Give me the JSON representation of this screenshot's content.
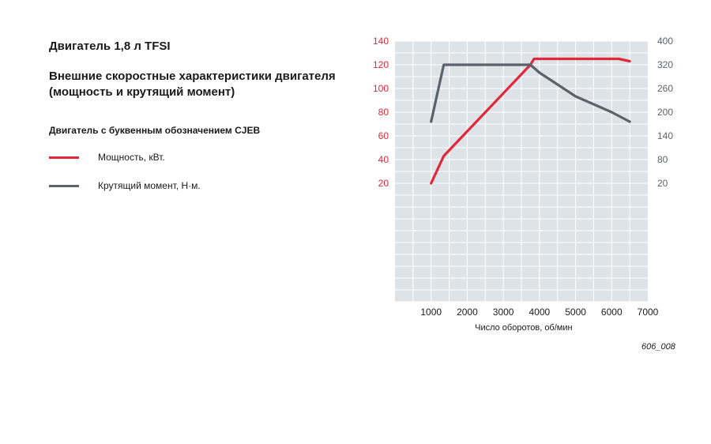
{
  "heading": "Двигатель 1,8 л TFSI",
  "subheading": "Внешние скоростные характеристики двигателя (мощность и крутящий момент)",
  "engine_code_label": "Двигатель с буквенным обозначением CJEB",
  "figure_id": "606_008",
  "colors": {
    "power": "#e0283a",
    "torque": "#5a636b",
    "plot_bg": "#dde3e7",
    "grid": "#ffffff"
  },
  "chart_data": {
    "type": "line",
    "title": "",
    "xlabel": "Число оборотов, об/мин",
    "x_ticks": [
      "1000",
      "2000",
      "3000",
      "4000",
      "5000",
      "6000",
      "7000"
    ],
    "x_tick_values": [
      1000,
      2000,
      3000,
      4000,
      5000,
      6000,
      7000
    ],
    "xlim": [
      0,
      7000
    ],
    "y_left_ticks": [
      "20",
      "40",
      "60",
      "80",
      "100",
      "120",
      "140"
    ],
    "y_left_tick_values": [
      20,
      40,
      60,
      80,
      100,
      120,
      140
    ],
    "y_left_lim": [
      -80,
      140
    ],
    "y_right_ticks": [
      "20",
      "80",
      "140",
      "200",
      "260",
      "320",
      "400"
    ],
    "y_right_tick_values": [
      20,
      80,
      140,
      200,
      260,
      320,
      400
    ],
    "grid": true,
    "legend_position": "left",
    "series": [
      {
        "name": "Мощность, кВт.",
        "axis": "left",
        "x": [
          1000,
          1350,
          3750,
          3850,
          6200,
          6500
        ],
        "y": [
          20,
          43,
          120,
          125,
          125,
          123
        ]
      },
      {
        "name": "Крутящий момент, Н·м.",
        "axis": "right",
        "x": [
          1000,
          1350,
          1450,
          3550,
          3750,
          4000,
          5000,
          6000,
          6500
        ],
        "y": [
          176,
          320,
          320,
          320,
          320,
          300,
          240,
          200,
          176
        ]
      }
    ]
  }
}
